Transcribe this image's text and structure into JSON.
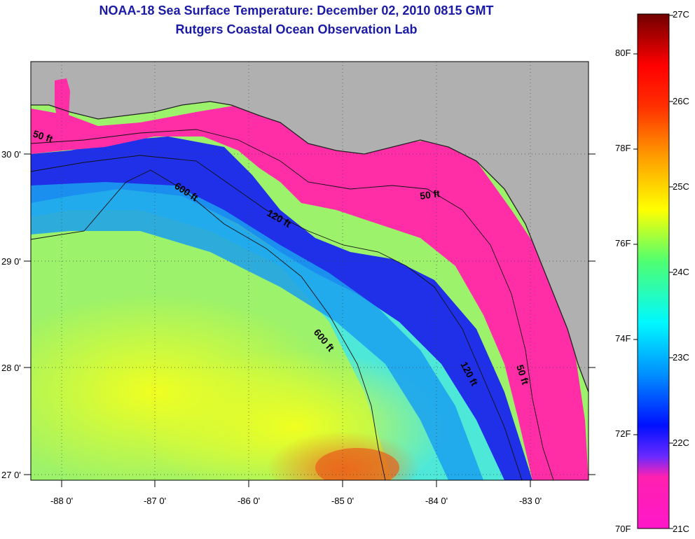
{
  "title": {
    "line1": "NOAA-18 Sea Surface Temperature:  December 02, 2010 0815 GMT",
    "line2": "Rutgers Coastal Ocean Observation Lab"
  },
  "map": {
    "lon_ticks": [
      "-88 0'",
      "-87 0'",
      "-86 0'",
      "-85 0'",
      "-84 0'",
      "-83 0'"
    ],
    "lat_ticks": [
      "30 0'",
      "29 0'",
      "28 0'",
      "27 0'"
    ],
    "contour_labels": [
      "50 ft",
      "600 ft",
      "120 ft",
      "50 ft",
      "600 ft",
      "120 ft",
      "50 ft"
    ],
    "colors": {
      "land": "#b0b0b0",
      "shelf": "#ff2ea6"
    }
  },
  "colorbar": {
    "fahrenheit": [
      "80F",
      "78F",
      "76F",
      "74F",
      "72F",
      "70F"
    ],
    "celsius": [
      "27C",
      "26C",
      "25C",
      "24C",
      "23C",
      "22C",
      "21C"
    ],
    "stops": [
      "#ff1fbf",
      "#8020ff",
      "#0010ff",
      "#00a0ff",
      "#00ffff",
      "#40ff80",
      "#ffff00",
      "#ffa000",
      "#ff4000",
      "#ff0000",
      "#7a0000"
    ]
  }
}
